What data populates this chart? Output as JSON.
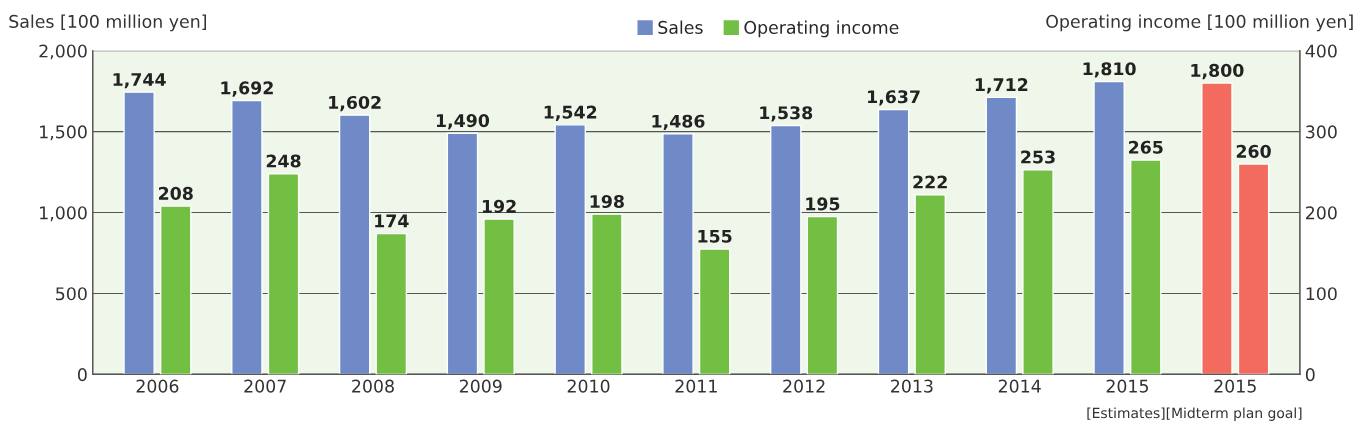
{
  "chart_data": {
    "type": "bar",
    "categories": [
      "2006",
      "2007",
      "2008",
      "2009",
      "2010",
      "2011",
      "2012",
      "2013",
      "2014",
      "2015",
      "2015"
    ],
    "series": [
      {
        "name": "Sales",
        "color": "#6f8ac6",
        "colors": [
          "#6f8ac6",
          "#6f8ac6",
          "#6f8ac6",
          "#6f8ac6",
          "#6f8ac6",
          "#6f8ac6",
          "#6f8ac6",
          "#6f8ac6",
          "#6f8ac6",
          "#6f8ac6",
          "#f26b5e"
        ],
        "values": [
          1744,
          1692,
          1602,
          1490,
          1542,
          1486,
          1538,
          1637,
          1712,
          1810,
          1800
        ],
        "value_labels": [
          "1,744",
          "1,692",
          "1,602",
          "1,490",
          "1,542",
          "1,486",
          "1,538",
          "1,637",
          "1,712",
          "1,810",
          "1,800"
        ]
      },
      {
        "name": "Operating income",
        "color": "#72bf44",
        "colors": [
          "#72bf44",
          "#72bf44",
          "#72bf44",
          "#72bf44",
          "#72bf44",
          "#72bf44",
          "#72bf44",
          "#72bf44",
          "#72bf44",
          "#72bf44",
          "#f26b5e"
        ],
        "axis": "y2",
        "values": [
          208,
          248,
          174,
          192,
          198,
          155,
          195,
          222,
          253,
          265,
          260
        ]
      }
    ],
    "ylabel": "Sales [100 million yen]",
    "y2label": "Operating income [100 million yen]",
    "ylim": [
      0,
      2000
    ],
    "yticks": [
      {
        "value": 0,
        "label": "0"
      },
      {
        "value": 500,
        "label": "500"
      },
      {
        "value": 1000,
        "label": "1,000"
      },
      {
        "value": 1500,
        "label": "1,500"
      },
      {
        "value": 2000,
        "label": "2,000"
      }
    ],
    "y2lim": [
      0,
      400
    ],
    "y2ticks": [
      0,
      100,
      200,
      300,
      400
    ],
    "data_labels": true,
    "grid": "y",
    "legend": "top",
    "annotations": [
      "[Estimates][Midterm plan goal]"
    ]
  }
}
